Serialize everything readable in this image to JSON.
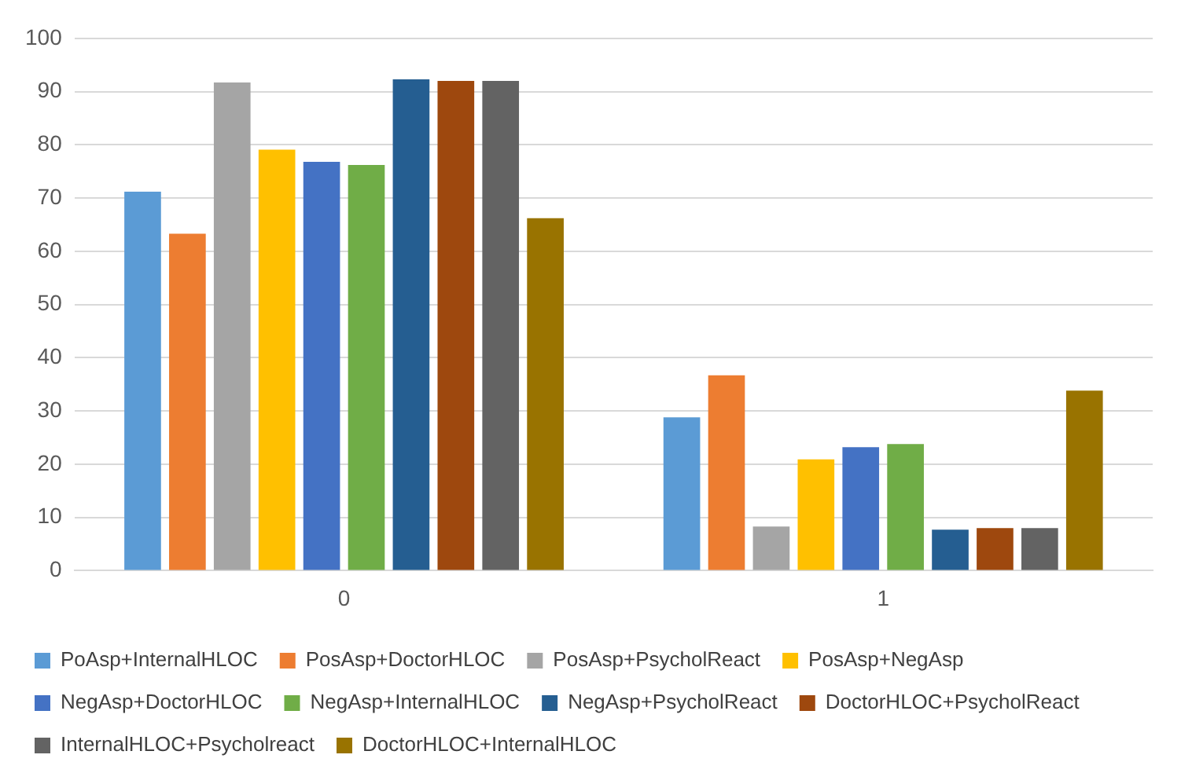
{
  "chart_data": {
    "type": "bar",
    "categories": [
      "0",
      "1"
    ],
    "series": [
      {
        "name": "PoAsp+InternalHLOC",
        "color": "#5b9bd5",
        "values": [
          71.2,
          28.8
        ]
      },
      {
        "name": "PosAsp+DoctorHLOC",
        "color": "#ed7d31",
        "values": [
          63.3,
          36.7
        ]
      },
      {
        "name": "PosAsp+PsycholReact",
        "color": "#a5a5a5",
        "values": [
          91.7,
          8.3
        ]
      },
      {
        "name": "PosAsp+NegAsp",
        "color": "#ffc000",
        "values": [
          79.1,
          20.9
        ]
      },
      {
        "name": "NegAsp+DoctorHLOC",
        "color": "#4472c4",
        "values": [
          76.8,
          23.2
        ]
      },
      {
        "name": "NegAsp+InternalHLOC",
        "color": "#70ad47",
        "values": [
          76.2,
          23.8
        ]
      },
      {
        "name": "NegAsp+PsycholReact",
        "color": "#255e91",
        "values": [
          92.3,
          7.7
        ]
      },
      {
        "name": "DoctorHLOC+PsycholReact",
        "color": "#9e480e",
        "values": [
          92.0,
          8.0
        ]
      },
      {
        "name": "InternalHLOC+Psycholreact",
        "color": "#636363",
        "values": [
          92.0,
          8.0
        ]
      },
      {
        "name": "DoctorHLOC+InternalHLOC",
        "color": "#997300",
        "values": [
          66.2,
          33.8
        ]
      }
    ],
    "ylim": [
      0,
      100
    ],
    "yticks": [
      0,
      10,
      20,
      30,
      40,
      50,
      60,
      70,
      80,
      90,
      100
    ],
    "grid": "y",
    "legend": "bottom"
  }
}
